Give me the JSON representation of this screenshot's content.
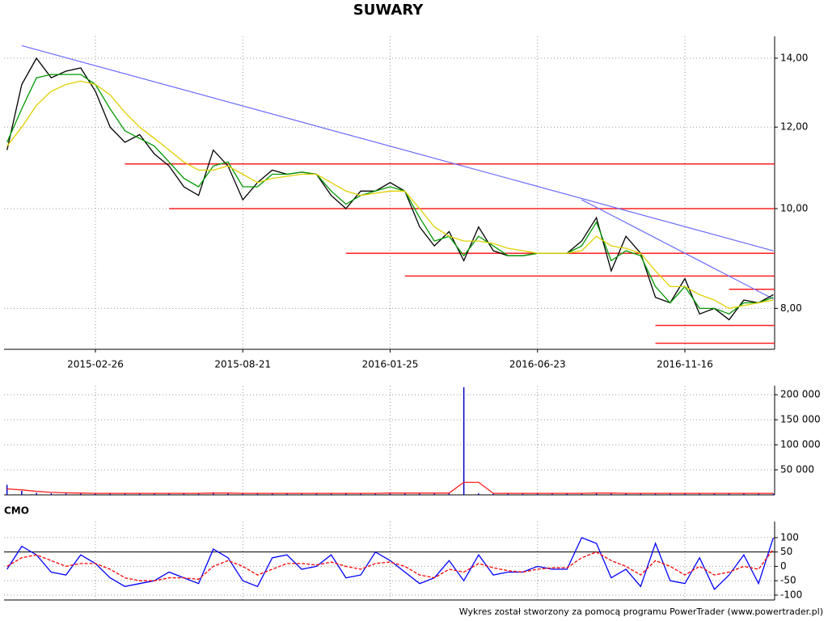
{
  "title": "SUWARY",
  "footer": "Wykres został stworzony za pomocą programu PowerTrader (www.powertrader.pl)",
  "chart_data": [
    {
      "type": "line",
      "log_scale": true,
      "grid": true,
      "categories": [
        null,
        null,
        null,
        null,
        null,
        null,
        "2015-02-26",
        null,
        null,
        null,
        null,
        null,
        null,
        null,
        null,
        null,
        "2015-08-21",
        null,
        null,
        null,
        null,
        null,
        null,
        null,
        null,
        null,
        "2016-01-25",
        null,
        null,
        null,
        null,
        null,
        null,
        null,
        null,
        null,
        "2016-06-23",
        null,
        null,
        null,
        null,
        null,
        null,
        null,
        null,
        null,
        "2016-11-16",
        null,
        null,
        null,
        null,
        null,
        null
      ],
      "ylim": [
        7.3,
        14.7
      ],
      "yticks": [
        {
          "value": 8,
          "label": "8,00"
        },
        {
          "value": 10,
          "label": "10,00"
        },
        {
          "value": 12,
          "label": "12,00"
        },
        {
          "value": 14,
          "label": "14,00"
        }
      ],
      "series": [
        {
          "color": "#000000",
          "values": [
            11.4,
            13.2,
            14.0,
            13.4,
            13.6,
            13.7,
            13.0,
            12.0,
            11.6,
            11.8,
            11.3,
            11.0,
            10.5,
            10.3,
            11.4,
            11.0,
            10.2,
            10.6,
            10.9,
            10.8,
            10.85,
            10.8,
            10.3,
            10.0,
            10.4,
            10.4,
            10.6,
            10.4,
            9.6,
            9.2,
            9.5,
            8.9,
            9.6,
            9.1,
            9.0,
            9.0,
            9.05,
            9.05,
            9.05,
            9.3,
            9.8,
            8.7,
            9.4,
            9.05,
            8.2,
            8.1,
            8.55,
            7.9,
            8.0,
            7.8,
            8.15,
            8.1,
            8.25
          ]
        },
        {
          "color": "#009a00",
          "values": [
            11.6,
            12.5,
            13.4,
            13.5,
            13.5,
            13.5,
            13.2,
            12.5,
            11.9,
            11.7,
            11.5,
            11.1,
            10.7,
            10.5,
            11.0,
            11.1,
            10.5,
            10.5,
            10.8,
            10.8,
            10.85,
            10.8,
            10.4,
            10.1,
            10.3,
            10.4,
            10.5,
            10.4,
            9.8,
            9.3,
            9.4,
            9.0,
            9.4,
            9.2,
            9.0,
            9.0,
            9.05,
            9.05,
            9.05,
            9.2,
            9.7,
            8.9,
            9.1,
            9.0,
            8.4,
            8.1,
            8.4,
            8.0,
            8.0,
            7.9,
            8.1,
            8.1,
            8.2
          ]
        },
        {
          "color": "#e0d000",
          "values": [
            11.5,
            12.0,
            12.6,
            13.0,
            13.2,
            13.3,
            13.2,
            12.9,
            12.4,
            12.0,
            11.7,
            11.4,
            11.1,
            10.9,
            10.9,
            11.0,
            10.8,
            10.6,
            10.7,
            10.75,
            10.8,
            10.8,
            10.6,
            10.4,
            10.3,
            10.35,
            10.4,
            10.4,
            10.0,
            9.6,
            9.4,
            9.3,
            9.3,
            9.25,
            9.15,
            9.1,
            9.05,
            9.05,
            9.05,
            9.1,
            9.4,
            9.2,
            9.15,
            9.05,
            8.7,
            8.4,
            8.4,
            8.25,
            8.15,
            8.0,
            8.05,
            8.1,
            8.15
          ]
        }
      ],
      "trend_lines": [
        {
          "color": "#6a6aff",
          "x": [
            1,
            52
          ],
          "values": [
            14.4,
            9.1
          ]
        },
        {
          "color": "#6a6aff",
          "x": [
            39,
            52
          ],
          "values": [
            10.2,
            8.17
          ]
        }
      ],
      "levels": [
        {
          "color": "#ff2020",
          "value": 11.05,
          "from": 8
        },
        {
          "color": "#ff2020",
          "value": 10.0,
          "from": 11
        },
        {
          "color": "#ff2020",
          "value": 9.05,
          "from": 23
        },
        {
          "color": "#ff2020",
          "value": 8.6,
          "from": 27
        },
        {
          "color": "#ff2020",
          "value": 8.35,
          "from": 49
        },
        {
          "color": "#ff2020",
          "value": 7.7,
          "from": 44
        },
        {
          "color": "#ff2020",
          "value": 7.4,
          "from": 44
        }
      ]
    },
    {
      "type": "bar",
      "grid": true,
      "ylim": [
        0,
        218000
      ],
      "yticks": [
        {
          "value": 50000,
          "label": "50 000"
        },
        {
          "value": 100000,
          "label": "100 000"
        },
        {
          "value": 150000,
          "label": "150 000"
        },
        {
          "value": 200000,
          "label": "200 000"
        }
      ],
      "series": [
        {
          "color": "#0000c0",
          "values": [
            20000,
            8000,
            4000,
            3000,
            3000,
            3000,
            3000,
            2500,
            2500,
            3000,
            3000,
            2500,
            2500,
            2500,
            5000,
            3000,
            2500,
            2500,
            2500,
            3000,
            3000,
            2500,
            2500,
            3000,
            3000,
            3000,
            5000,
            3000,
            3000,
            3500,
            4000,
            215000,
            3000,
            2500,
            2500,
            2500,
            2500,
            2500,
            2500,
            3000,
            4000,
            3000,
            2500,
            2500,
            2500,
            2500,
            2500,
            3000,
            2500,
            2500,
            3000,
            2500,
            2500
          ]
        },
        {
          "color": "#ff2020",
          "kind": "line",
          "values": [
            12000,
            10000,
            7000,
            5000,
            4000,
            3500,
            3000,
            3000,
            3000,
            3000,
            3000,
            3000,
            3000,
            3000,
            3500,
            3500,
            3000,
            3000,
            3000,
            3000,
            3000,
            3000,
            3000,
            3000,
            3000,
            3000,
            3500,
            3500,
            3500,
            3500,
            3500,
            25000,
            25000,
            3000,
            3000,
            3000,
            3000,
            3000,
            3000,
            3000,
            3500,
            3500,
            3000,
            3000,
            3000,
            3000,
            3000,
            3000,
            3000,
            3000,
            3000,
            3000,
            3000
          ]
        }
      ]
    },
    {
      "type": "line",
      "title": "CMO",
      "grid": true,
      "ylim": [
        -117,
        156
      ],
      "yticks": [
        -100,
        -50,
        0,
        50,
        100
      ],
      "hlines": [
        50
      ],
      "series": [
        {
          "color": "#0000ff",
          "values": [
            -10,
            70,
            40,
            -20,
            -30,
            40,
            10,
            -40,
            -70,
            -60,
            -50,
            -20,
            -40,
            -60,
            60,
            30,
            -50,
            -70,
            30,
            40,
            -10,
            0,
            40,
            -40,
            -30,
            50,
            20,
            -20,
            -60,
            -40,
            20,
            -50,
            40,
            -30,
            -20,
            -20,
            0,
            -10,
            -10,
            100,
            80,
            -40,
            -10,
            -70,
            80,
            -50,
            -60,
            30,
            -80,
            -30,
            40,
            -60,
            100
          ]
        },
        {
          "color": "#ff0000",
          "dashed": true,
          "values": [
            0,
            30,
            40,
            20,
            0,
            10,
            10,
            -10,
            -40,
            -50,
            -50,
            -40,
            -40,
            -45,
            0,
            20,
            0,
            -30,
            -10,
            10,
            10,
            5,
            15,
            0,
            -10,
            10,
            15,
            0,
            -30,
            -40,
            -10,
            -20,
            10,
            -5,
            -15,
            -20,
            -10,
            -5,
            -5,
            30,
            50,
            20,
            0,
            -30,
            20,
            0,
            -30,
            0,
            -30,
            -20,
            0,
            -10,
            60
          ]
        }
      ]
    }
  ]
}
